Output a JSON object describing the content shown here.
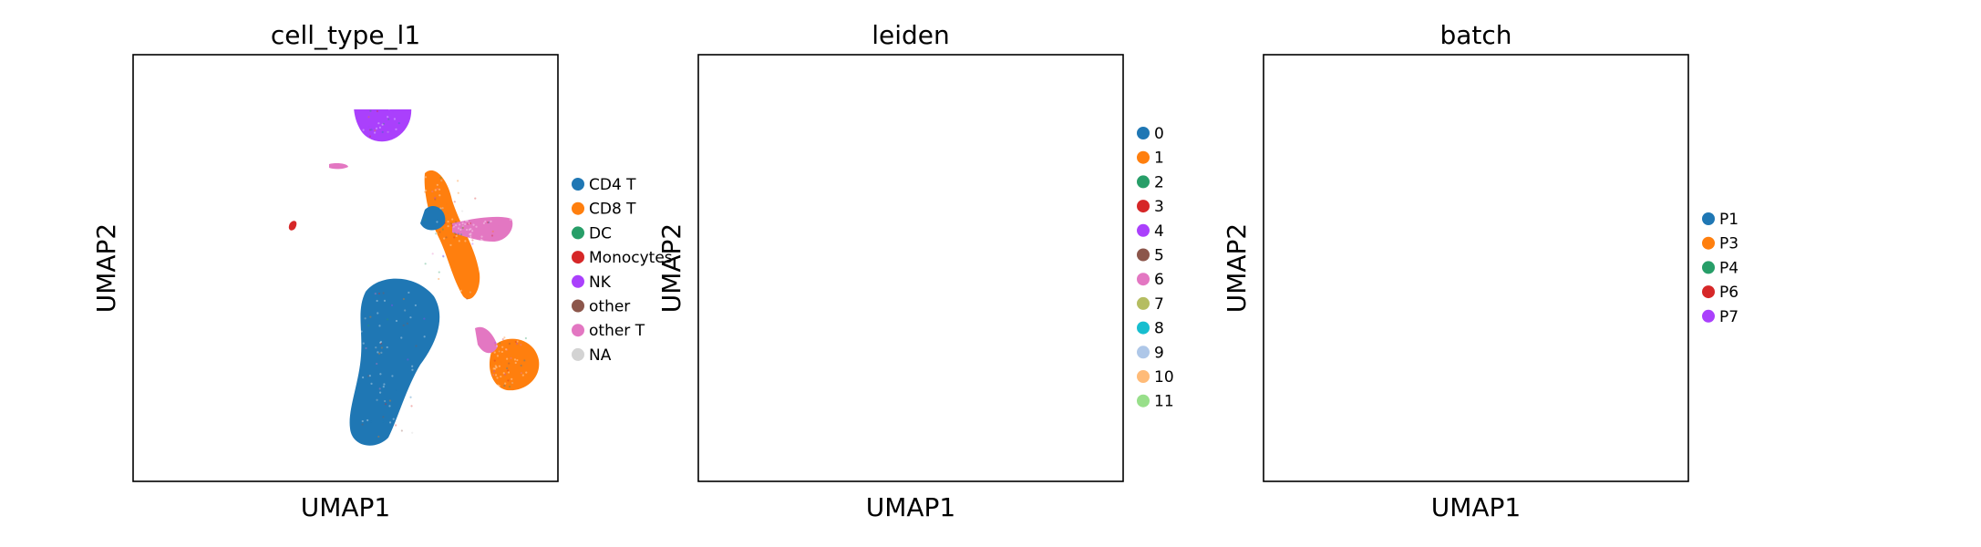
{
  "chart_data": [
    {
      "type": "scatter",
      "title": "cell_type_l1",
      "xlabel": "UMAP1",
      "ylabel": "UMAP2",
      "grid": false,
      "legend_placement": "right",
      "legend": [
        {
          "label": "CD4 T",
          "color": "#1f77b4"
        },
        {
          "label": "CD8 T",
          "color": "#ff7f0e"
        },
        {
          "label": "DC",
          "color": "#279e68"
        },
        {
          "label": "Monocytes",
          "color": "#d62728"
        },
        {
          "label": "NK",
          "color": "#aa40fc"
        },
        {
          "label": "other",
          "color": "#8c564b"
        },
        {
          "label": "other T",
          "color": "#e377c2"
        },
        {
          "label": "NA",
          "color": "#d3d3d3"
        }
      ]
    },
    {
      "type": "scatter",
      "title": "leiden",
      "xlabel": "UMAP1",
      "ylabel": "UMAP2",
      "grid": false,
      "legend_placement": "right",
      "legend": [
        {
          "label": "0",
          "color": "#1f77b4"
        },
        {
          "label": "1",
          "color": "#ff7f0e"
        },
        {
          "label": "2",
          "color": "#279e68"
        },
        {
          "label": "3",
          "color": "#d62728"
        },
        {
          "label": "4",
          "color": "#aa40fc"
        },
        {
          "label": "5",
          "color": "#8c564b"
        },
        {
          "label": "6",
          "color": "#e377c2"
        },
        {
          "label": "7",
          "color": "#b5bd61"
        },
        {
          "label": "8",
          "color": "#17becf"
        },
        {
          "label": "9",
          "color": "#aec7e8"
        },
        {
          "label": "10",
          "color": "#ffbb78"
        },
        {
          "label": "11",
          "color": "#98df8a"
        }
      ]
    },
    {
      "type": "scatter",
      "title": "batch",
      "xlabel": "UMAP1",
      "ylabel": "UMAP2",
      "grid": false,
      "legend_placement": "right",
      "legend": [
        {
          "label": "P1",
          "color": "#1f77b4"
        },
        {
          "label": "P3",
          "color": "#ff7f0e"
        },
        {
          "label": "P4",
          "color": "#279e68"
        },
        {
          "label": "P6",
          "color": "#d62728"
        },
        {
          "label": "P7",
          "color": "#aa40fc"
        }
      ]
    }
  ]
}
